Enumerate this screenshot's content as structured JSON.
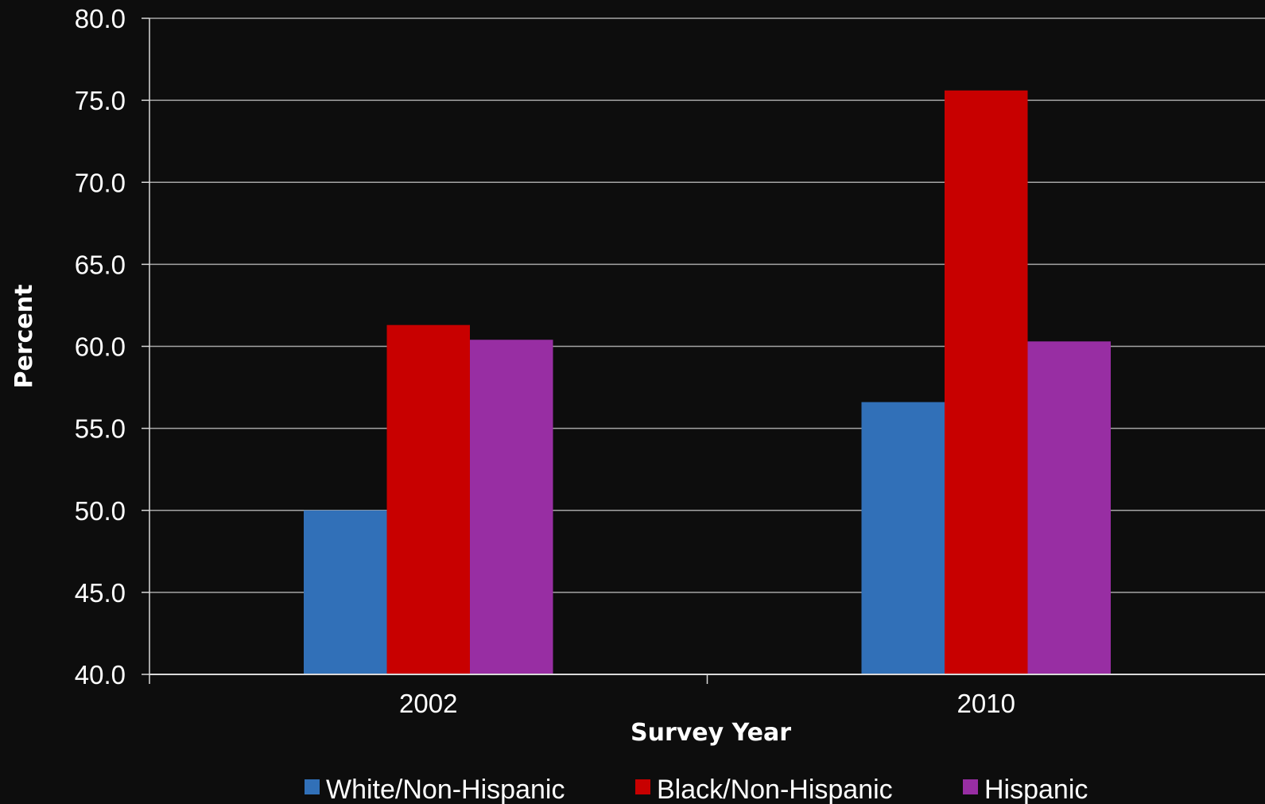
{
  "chart_data": {
    "type": "bar",
    "title": "",
    "xlabel": "Survey Year",
    "ylabel": "Percent",
    "categories": [
      "2002",
      "2010"
    ],
    "series": [
      {
        "name": "White/Non-Hispanic",
        "values": [
          50.0,
          56.6
        ],
        "color": "#3170b8"
      },
      {
        "name": "Black/Non-Hispanic",
        "values": [
          61.3,
          75.6
        ],
        "color": "#c80000"
      },
      {
        "name": "Hispanic",
        "values": [
          60.4,
          60.3
        ],
        "color": "#982ea3"
      }
    ],
    "ylim": [
      40.0,
      80.0
    ],
    "ytick_step": 5.0,
    "yticks": [
      "40.0",
      "45.0",
      "50.0",
      "55.0",
      "60.0",
      "65.0",
      "70.0",
      "75.0",
      "80.0"
    ],
    "grid": true,
    "legend_position": "bottom",
    "background_color": "#0d0d0d",
    "gridline_color": "#a6a6a6"
  }
}
